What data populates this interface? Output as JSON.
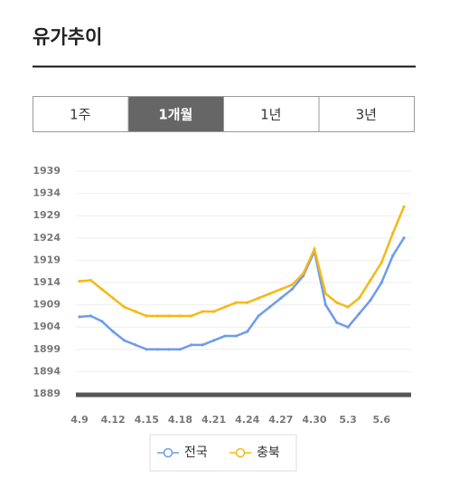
{
  "header": {
    "title": "유가추이"
  },
  "tabs": [
    {
      "label": "1주",
      "active": false
    },
    {
      "label": "1개월",
      "active": true
    },
    {
      "label": "1년",
      "active": false
    },
    {
      "label": "3년",
      "active": false
    }
  ],
  "chart_data": {
    "type": "line",
    "categories": [
      "4.9",
      null,
      null,
      "4.12",
      null,
      null,
      "4.15",
      null,
      null,
      "4.18",
      null,
      null,
      "4.21",
      null,
      null,
      "4.24",
      null,
      null,
      "4.27",
      null,
      null,
      "4.30",
      null,
      null,
      "5.3",
      null,
      null,
      "5.6",
      null,
      null
    ],
    "series": [
      {
        "name": "전국",
        "color": "#6d9ceb",
        "values": [
          1906.3,
          1906.5,
          1905.3,
          1903,
          1901,
          1900,
          1899,
          1899,
          1899,
          1899,
          1900,
          1900,
          1901,
          1902,
          1902,
          1903,
          1906.5,
          1908.5,
          1910.5,
          1912.5,
          1915.5,
          1921,
          1909,
          1905,
          1904,
          1907,
          1910,
          1914,
          1920,
          1924
        ]
      },
      {
        "name": "충북",
        "color": "#f5b915",
        "values": [
          1914.3,
          1914.5,
          1912.5,
          1910.5,
          1908.5,
          1907.5,
          1906.5,
          1906.5,
          1906.5,
          1906.5,
          1906.5,
          1907.5,
          1907.5,
          1908.5,
          1909.5,
          1909.5,
          1910.5,
          1911.5,
          1912.5,
          1913.5,
          1916,
          1921.5,
          1911.5,
          1909.5,
          1908.5,
          1910.5,
          1914.5,
          1918.5,
          1925,
          1931
        ]
      }
    ],
    "ylim": [
      1889,
      1939
    ],
    "yticks": [
      1889,
      1894,
      1899,
      1904,
      1909,
      1914,
      1919,
      1924,
      1929,
      1934,
      1939
    ],
    "grid": true,
    "legend": "bottom"
  }
}
